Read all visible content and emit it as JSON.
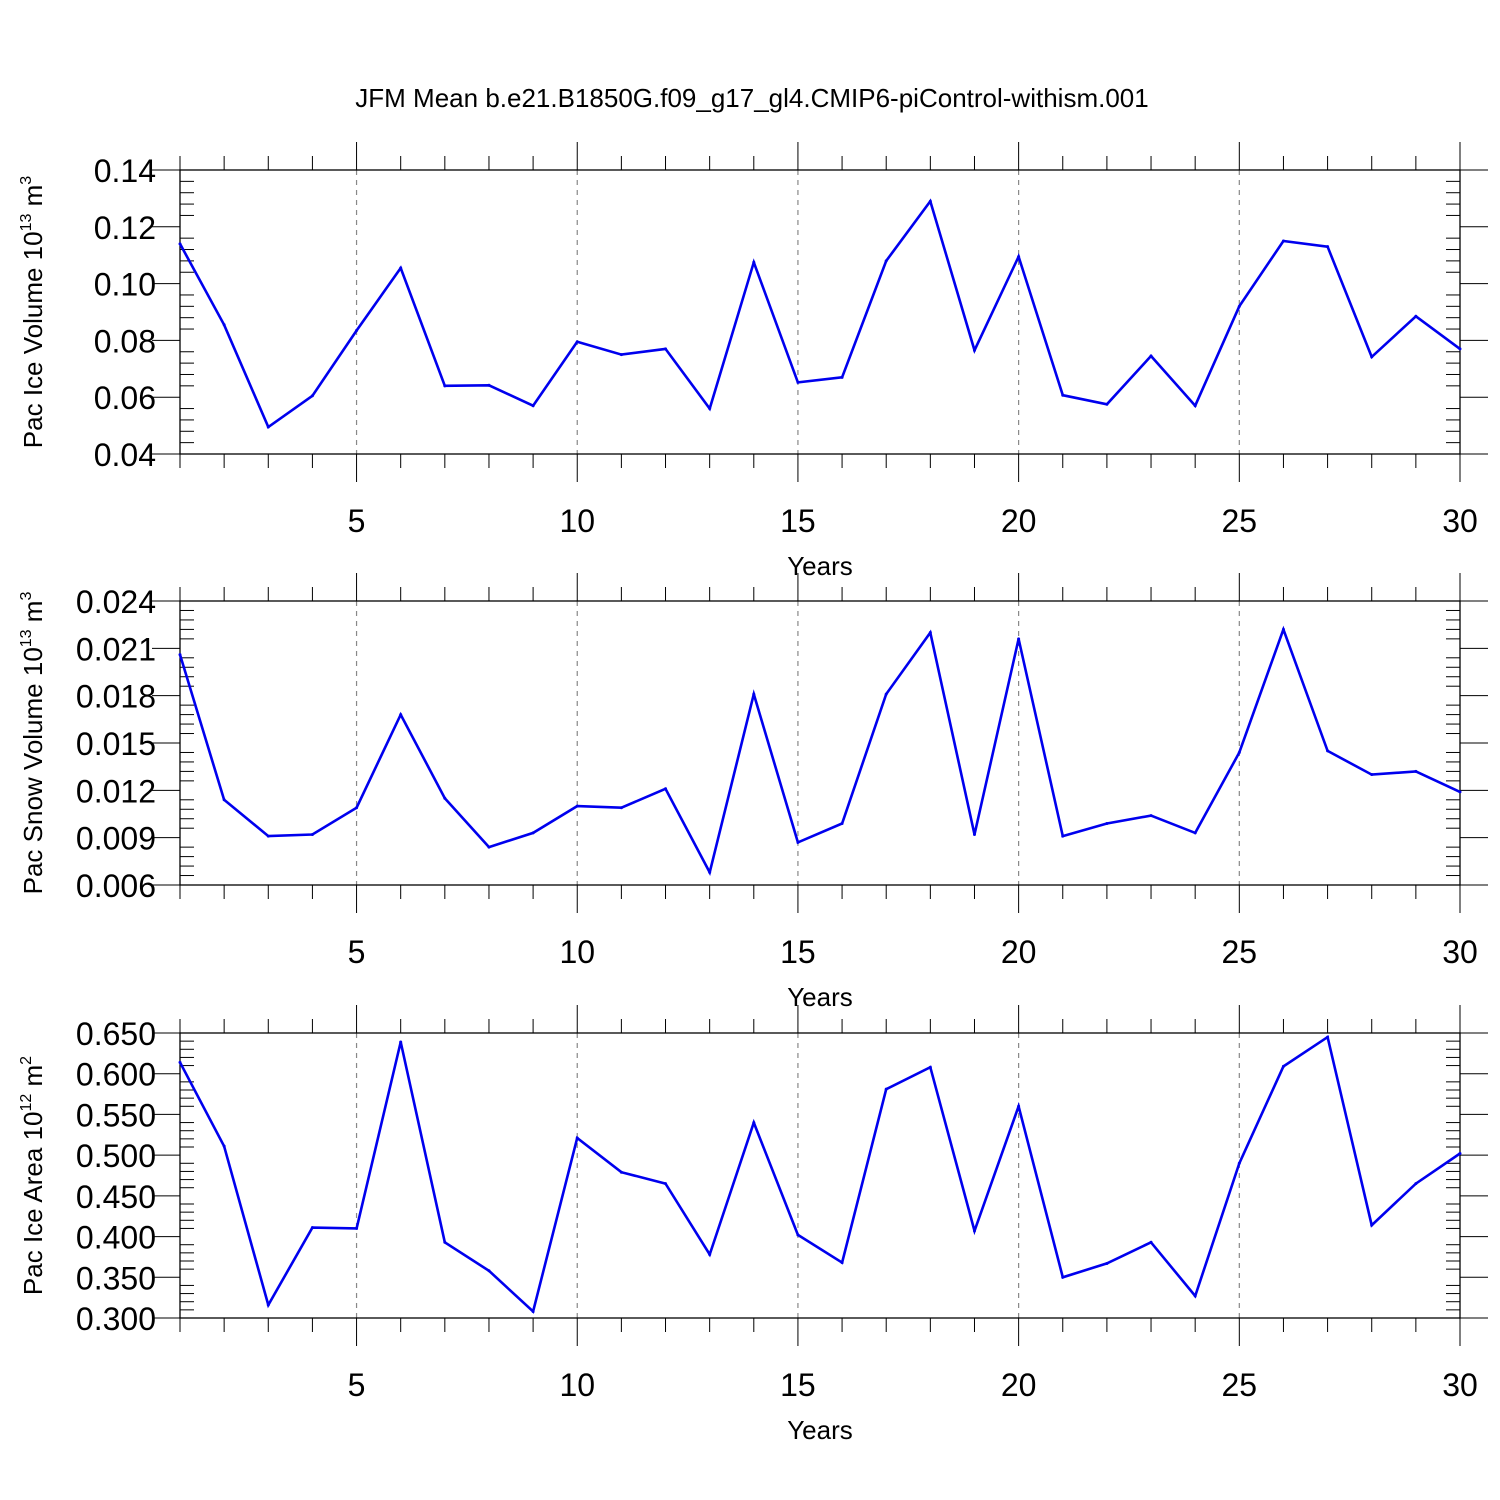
{
  "title": "JFM Mean b.e21.B1850G.f09_g17_gl4.CMIP6-piControl-withism.001",
  "chart_data": [
    {
      "type": "line",
      "ylabel": "Pac Ice Volume",
      "ylabel_unit": "10",
      "ylabel_exp": "13",
      "ylabel_unit_base": "m",
      "ylabel_unit_exp": "3",
      "xlabel": "Years",
      "xlim": [
        1,
        30
      ],
      "ylim": [
        0.04,
        0.14
      ],
      "xticks": [
        5,
        10,
        15,
        20,
        25,
        30
      ],
      "yticks": [
        "0.04",
        "0.06",
        "0.08",
        "0.10",
        "0.12",
        "0.14"
      ],
      "line_color": "#0000ee",
      "grid": "dashed vertical at major x ticks",
      "x": [
        1,
        2,
        3,
        4,
        5,
        6,
        7,
        8,
        9,
        10,
        11,
        12,
        13,
        14,
        15,
        16,
        17,
        18,
        19,
        20,
        21,
        22,
        23,
        24,
        25,
        26,
        27,
        28,
        29,
        30
      ],
      "values": [
        0.114,
        0.0855,
        0.0495,
        0.0605,
        0.0835,
        0.1055,
        0.064,
        0.0642,
        0.057,
        0.0795,
        0.075,
        0.077,
        0.056,
        0.1075,
        0.0652,
        0.067,
        0.108,
        0.129,
        0.0765,
        0.1095,
        0.0607,
        0.0575,
        0.0745,
        0.057,
        0.092,
        0.115,
        0.113,
        0.0742,
        0.0885,
        0.077
      ]
    },
    {
      "type": "line",
      "ylabel": "Pac Snow Volume",
      "ylabel_unit": "10",
      "ylabel_exp": "13",
      "ylabel_unit_base": "m",
      "ylabel_unit_exp": "3",
      "xlabel": "Years",
      "xlim": [
        1,
        30
      ],
      "ylim": [
        0.006,
        0.024
      ],
      "xticks": [
        5,
        10,
        15,
        20,
        25,
        30
      ],
      "yticks": [
        "0.006",
        "0.009",
        "0.012",
        "0.015",
        "0.018",
        "0.021",
        "0.024"
      ],
      "line_color": "#0000ee",
      "grid": "dashed vertical at major x ticks",
      "x": [
        1,
        2,
        3,
        4,
        5,
        6,
        7,
        8,
        9,
        10,
        11,
        12,
        13,
        14,
        15,
        16,
        17,
        18,
        19,
        20,
        21,
        22,
        23,
        24,
        25,
        26,
        27,
        28,
        29,
        30
      ],
      "values": [
        0.0206,
        0.0114,
        0.0091,
        0.0092,
        0.0109,
        0.0168,
        0.0115,
        0.0084,
        0.0093,
        0.011,
        0.0109,
        0.0121,
        0.0068,
        0.0181,
        0.0087,
        0.0099,
        0.0181,
        0.022,
        0.0092,
        0.0216,
        0.0091,
        0.0099,
        0.0104,
        0.0093,
        0.0144,
        0.0222,
        0.0145,
        0.013,
        0.0132,
        0.0119
      ]
    },
    {
      "type": "line",
      "ylabel": "Pac Ice Area",
      "ylabel_unit": "10",
      "ylabel_exp": "12",
      "ylabel_unit_base": "m",
      "ylabel_unit_exp": "2",
      "xlabel": "Years",
      "xlim": [
        1,
        30
      ],
      "ylim": [
        0.3,
        0.65
      ],
      "xticks": [
        5,
        10,
        15,
        20,
        25,
        30
      ],
      "yticks": [
        "0.300",
        "0.350",
        "0.400",
        "0.450",
        "0.500",
        "0.550",
        "0.600",
        "0.650"
      ],
      "line_color": "#0000ee",
      "grid": "dashed vertical at major x ticks",
      "x": [
        1,
        2,
        3,
        4,
        5,
        6,
        7,
        8,
        9,
        10,
        11,
        12,
        13,
        14,
        15,
        16,
        17,
        18,
        19,
        20,
        21,
        22,
        23,
        24,
        25,
        26,
        27,
        28,
        29,
        30
      ],
      "values": [
        0.614,
        0.511,
        0.316,
        0.411,
        0.41,
        0.639,
        0.393,
        0.358,
        0.308,
        0.521,
        0.479,
        0.465,
        0.378,
        0.54,
        0.402,
        0.368,
        0.581,
        0.608,
        0.407,
        0.56,
        0.35,
        0.367,
        0.393,
        0.327,
        0.49,
        0.609,
        0.645,
        0.414,
        0.465,
        0.502
      ]
    }
  ]
}
